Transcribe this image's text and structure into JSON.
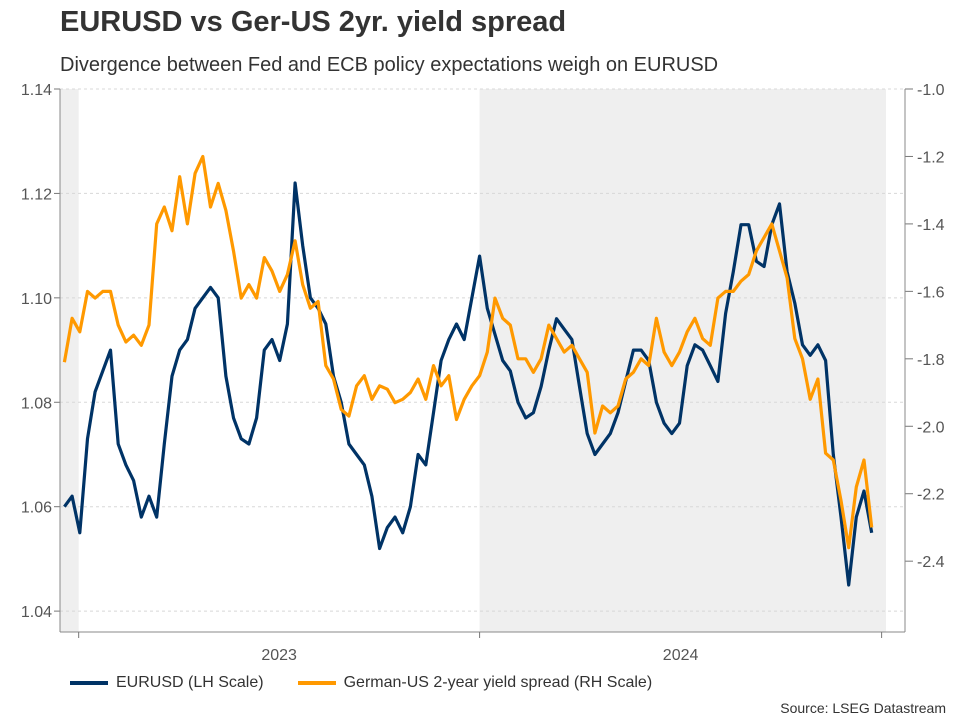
{
  "chart_data": {
    "type": "line",
    "title": "EURUSD vs Ger-US 2yr. yield spread",
    "subtitle": "Divergence between Fed and ECB policy expectations weigh on EURUSD",
    "source": "Source: LSEG Datastream",
    "x_ticks": [
      "2023",
      "2024"
    ],
    "xlim": [
      "2022-12-15",
      "2025-01-05"
    ],
    "shaded_periods": [
      [
        "2022-12-15",
        "2023-01-01"
      ],
      [
        "2024-01-01",
        "2025-01-05"
      ]
    ],
    "left_axis": {
      "ylim": [
        1.036,
        1.14
      ],
      "ticks": [
        "1.04",
        "1.06",
        "1.08",
        "1.10",
        "1.12",
        "1.14"
      ]
    },
    "right_axis": {
      "ylim": [
        -2.61,
        -1.0
      ],
      "ticks": [
        "-1.0",
        "-1.2",
        "-1.4",
        "-1.6",
        "-1.8",
        "-2.0",
        "-2.2",
        "-2.4"
      ]
    },
    "grid": true,
    "legend_placement": "bottom",
    "x": [
      "2022-12-19",
      "2022-12-26",
      "2023-01-02",
      "2023-01-09",
      "2023-01-16",
      "2023-01-23",
      "2023-01-30",
      "2023-02-06",
      "2023-02-13",
      "2023-02-20",
      "2023-02-27",
      "2023-03-06",
      "2023-03-13",
      "2023-03-20",
      "2023-03-27",
      "2023-04-03",
      "2023-04-10",
      "2023-04-17",
      "2023-04-24",
      "2023-05-01",
      "2023-05-08",
      "2023-05-15",
      "2023-05-22",
      "2023-05-29",
      "2023-06-05",
      "2023-06-12",
      "2023-06-19",
      "2023-06-26",
      "2023-07-03",
      "2023-07-10",
      "2023-07-17",
      "2023-07-24",
      "2023-07-31",
      "2023-08-07",
      "2023-08-14",
      "2023-08-21",
      "2023-08-28",
      "2023-09-04",
      "2023-09-11",
      "2023-09-18",
      "2023-09-25",
      "2023-10-02",
      "2023-10-09",
      "2023-10-16",
      "2023-10-23",
      "2023-10-30",
      "2023-11-06",
      "2023-11-13",
      "2023-11-20",
      "2023-11-27",
      "2023-12-04",
      "2023-12-11",
      "2023-12-18",
      "2023-12-25",
      "2024-01-01",
      "2024-01-08",
      "2024-01-15",
      "2024-01-22",
      "2024-01-29",
      "2024-02-05",
      "2024-02-12",
      "2024-02-19",
      "2024-02-26",
      "2024-03-04",
      "2024-03-11",
      "2024-03-18",
      "2024-03-25",
      "2024-04-01",
      "2024-04-08",
      "2024-04-15",
      "2024-04-22",
      "2024-04-29",
      "2024-05-06",
      "2024-05-13",
      "2024-05-20",
      "2024-05-27",
      "2024-06-03",
      "2024-06-10",
      "2024-06-17",
      "2024-06-24",
      "2024-07-01",
      "2024-07-08",
      "2024-07-15",
      "2024-07-22",
      "2024-07-29",
      "2024-08-05",
      "2024-08-12",
      "2024-08-19",
      "2024-08-26",
      "2024-09-02",
      "2024-09-09",
      "2024-09-16",
      "2024-09-23",
      "2024-09-30",
      "2024-10-07",
      "2024-10-14",
      "2024-10-21",
      "2024-10-28",
      "2024-11-04",
      "2024-11-11",
      "2024-11-18",
      "2024-11-25",
      "2024-12-02",
      "2024-12-09",
      "2024-12-16",
      "2024-12-23"
    ],
    "series": [
      {
        "name": "EURUSD (LH Scale)",
        "axis": "left",
        "color": "#003366",
        "values": [
          1.06,
          1.062,
          1.055,
          1.073,
          1.082,
          1.086,
          1.09,
          1.072,
          1.068,
          1.065,
          1.058,
          1.062,
          1.058,
          1.072,
          1.085,
          1.09,
          1.092,
          1.098,
          1.1,
          1.102,
          1.1,
          1.085,
          1.077,
          1.073,
          1.072,
          1.077,
          1.09,
          1.092,
          1.088,
          1.095,
          1.122,
          1.11,
          1.1,
          1.098,
          1.095,
          1.085,
          1.08,
          1.072,
          1.07,
          1.068,
          1.062,
          1.052,
          1.056,
          1.058,
          1.055,
          1.06,
          1.07,
          1.068,
          1.078,
          1.088,
          1.092,
          1.095,
          1.092,
          1.1,
          1.108,
          1.098,
          1.093,
          1.088,
          1.086,
          1.08,
          1.077,
          1.078,
          1.083,
          1.09,
          1.096,
          1.094,
          1.092,
          1.083,
          1.074,
          1.07,
          1.072,
          1.074,
          1.078,
          1.084,
          1.09,
          1.09,
          1.088,
          1.08,
          1.076,
          1.074,
          1.076,
          1.087,
          1.091,
          1.09,
          1.087,
          1.084,
          1.097,
          1.105,
          1.114,
          1.114,
          1.107,
          1.106,
          1.114,
          1.118,
          1.105,
          1.099,
          1.091,
          1.089,
          1.091,
          1.088,
          1.07,
          1.058,
          1.045,
          1.058,
          1.063,
          1.055
        ]
      },
      {
        "name": "German-US 2-year yield spread (RH Scale)",
        "axis": "right",
        "color": "#ff9900",
        "values": [
          -1.81,
          -1.68,
          -1.72,
          -1.6,
          -1.62,
          -1.6,
          -1.6,
          -1.7,
          -1.75,
          -1.73,
          -1.76,
          -1.7,
          -1.4,
          -1.35,
          -1.42,
          -1.26,
          -1.4,
          -1.25,
          -1.2,
          -1.35,
          -1.28,
          -1.36,
          -1.48,
          -1.62,
          -1.58,
          -1.62,
          -1.5,
          -1.54,
          -1.6,
          -1.55,
          -1.45,
          -1.58,
          -1.65,
          -1.63,
          -1.82,
          -1.86,
          -1.95,
          -1.97,
          -1.88,
          -1.85,
          -1.92,
          -1.88,
          -1.89,
          -1.93,
          -1.92,
          -1.9,
          -1.86,
          -1.92,
          -1.82,
          -1.88,
          -1.85,
          -1.98,
          -1.92,
          -1.88,
          -1.85,
          -1.78,
          -1.62,
          -1.68,
          -1.7,
          -1.8,
          -1.8,
          -1.84,
          -1.8,
          -1.7,
          -1.74,
          -1.78,
          -1.76,
          -1.8,
          -1.84,
          -2.02,
          -1.94,
          -1.96,
          -1.94,
          -1.86,
          -1.84,
          -1.8,
          -1.82,
          -1.68,
          -1.78,
          -1.82,
          -1.78,
          -1.72,
          -1.68,
          -1.74,
          -1.76,
          -1.62,
          -1.6,
          -1.6,
          -1.57,
          -1.55,
          -1.48,
          -1.44,
          -1.4,
          -1.48,
          -1.56,
          -1.74,
          -1.8,
          -1.92,
          -1.86,
          -2.08,
          -2.1,
          -2.22,
          -2.36,
          -2.18,
          -2.1,
          -2.3
        ]
      }
    ]
  }
}
